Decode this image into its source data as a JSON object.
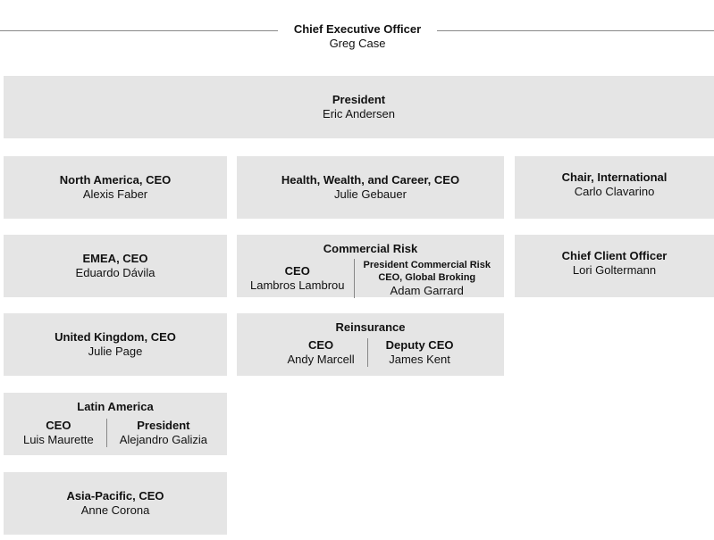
{
  "ceo": {
    "title": "Chief Executive Officer",
    "name": "Greg Case"
  },
  "president": {
    "title": "President",
    "name": "Eric Andersen"
  },
  "north_america": {
    "title": "North America, CEO",
    "name": "Alexis Faber"
  },
  "hwc": {
    "title": "Health, Wealth, and Career, CEO",
    "name": "Julie Gebauer"
  },
  "chair_intl": {
    "title": "Chair, International",
    "name": "Carlo Clavarino"
  },
  "emea": {
    "title": "EMEA, CEO",
    "name": "Eduardo Dávila"
  },
  "commercial_risk": {
    "title": "Commercial Risk",
    "left": {
      "title": "CEO",
      "name": "Lambros Lambrou"
    },
    "right": {
      "title1": "President Commercial Risk",
      "title2": "CEO, Global Broking",
      "name": "Adam Garrard"
    }
  },
  "cco": {
    "title": "Chief Client Officer",
    "name": "Lori Goltermann"
  },
  "uk": {
    "title": "United Kingdom, CEO",
    "name": "Julie Page"
  },
  "reinsurance": {
    "title": "Reinsurance",
    "left": {
      "title": "CEO",
      "name": "Andy Marcell"
    },
    "right": {
      "title": "Deputy CEO",
      "name": "James Kent"
    }
  },
  "latam": {
    "title": "Latin America",
    "left": {
      "title": "CEO",
      "name": "Luis Maurette"
    },
    "right": {
      "title": "President",
      "name": "Alejandro Galizia"
    }
  },
  "apac": {
    "title": "Asia-Pacific, CEO",
    "name": "Anne Corona"
  }
}
